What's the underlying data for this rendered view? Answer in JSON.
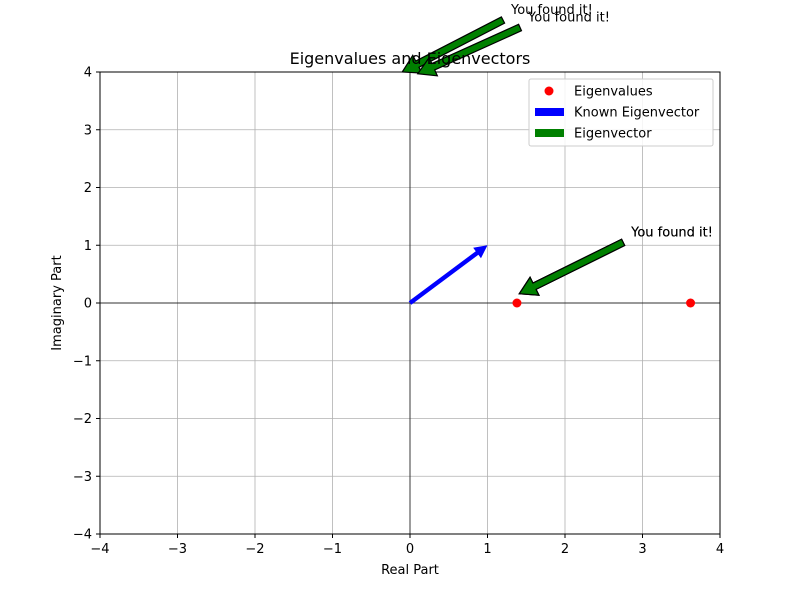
{
  "chart_data": {
    "type": "scatter",
    "title": "Eigenvalues and Eigenvectors",
    "xlabel": "Real Part",
    "ylabel": "Imaginary Part",
    "xlim": [
      -4,
      4
    ],
    "ylim": [
      -4,
      4
    ],
    "xticks": [
      -4,
      -3,
      -2,
      -1,
      0,
      1,
      2,
      3,
      4
    ],
    "yticks": [
      -4,
      -3,
      -2,
      -1,
      0,
      1,
      2,
      3,
      4
    ],
    "xtick_labels": [
      "−4",
      "−3",
      "−2",
      "−1",
      "0",
      "1",
      "2",
      "3",
      "4"
    ],
    "ytick_labels": [
      "−4",
      "−3",
      "−2",
      "−1",
      "0",
      "1",
      "2",
      "3",
      "4"
    ],
    "grid": true,
    "legend_position": "top-right",
    "legend": [
      {
        "label": "Eigenvalues",
        "kind": "marker",
        "color": "#ff0000"
      },
      {
        "label": "Known Eigenvector",
        "kind": "patch",
        "color": "#0000ff"
      },
      {
        "label": "Eigenvector",
        "kind": "patch",
        "color": "#008000"
      }
    ],
    "eigenvalues": {
      "color": "#ff0000",
      "points": [
        {
          "x": 1.38,
          "y": 0
        },
        {
          "x": 3.62,
          "y": 0
        }
      ]
    },
    "known_eigenvector": {
      "color": "#0000ff",
      "from": [
        0,
        0
      ],
      "to": [
        1,
        1
      ]
    },
    "annotations": [
      {
        "text": "You found it!",
        "color": "#008000",
        "from": [
          1.2,
          4.9
        ],
        "to": [
          -0.1,
          4.0
        ]
      },
      {
        "text": "You found it!",
        "color": "#008000",
        "from": [
          1.42,
          4.77
        ],
        "to": [
          0.1,
          3.97
        ]
      },
      {
        "text": "You found it!",
        "color": "#008000",
        "from": [
          2.75,
          1.05
        ],
        "to": [
          1.41,
          0.16
        ]
      },
      {
        "text": "You found it!",
        "color": "#008000",
        "from": [
          2.75,
          1.05
        ],
        "to": [
          1.41,
          0.16
        ]
      }
    ]
  }
}
